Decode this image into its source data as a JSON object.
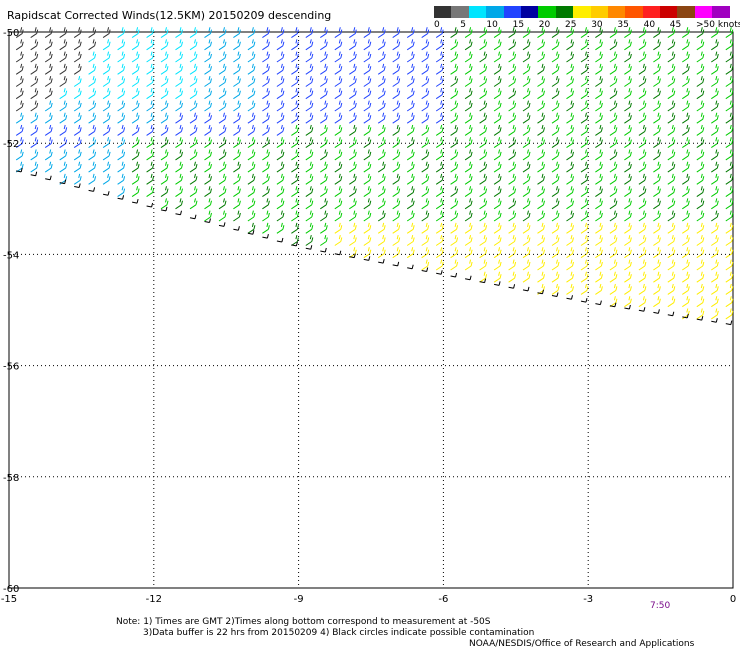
{
  "title": "Rapidscat Corrected Winds(12.5KM) 20150209 descending",
  "legend": {
    "labels": [
      "0",
      "5",
      "10",
      "15",
      "20",
      "25",
      "30",
      "35",
      "40",
      "45",
      ">50 knots"
    ],
    "colors": [
      "#333333",
      "#777777",
      "#00e5ff",
      "#00a8e8",
      "#2244ff",
      "#0000a0",
      "#00cc00",
      "#007a00",
      "#ffee00",
      "#ffcc00",
      "#ff8800",
      "#ff5500",
      "#ff2020",
      "#cc0000",
      "#8b4513",
      "#ff00ff",
      "#a000c0"
    ]
  },
  "chart_data": {
    "type": "scatter",
    "description_kind": "wind barb map",
    "xlim": [
      -15,
      0
    ],
    "ylim": [
      -60,
      -50
    ],
    "x_ticks": [
      "-15",
      "-12",
      "-9",
      "-6",
      "-3",
      "0"
    ],
    "y_ticks": [
      "-50",
      "-52",
      "-54",
      "-56",
      "-58",
      "-60"
    ],
    "time_labels": [
      "7:50"
    ],
    "swath_southern_edge": [
      [
        -15,
        -52.5
      ],
      [
        -9,
        -53.9
      ],
      [
        -6,
        -54.4
      ],
      [
        -3,
        -54.9
      ],
      [
        0,
        -55.3
      ]
    ],
    "wind_regions": [
      {
        "speed_knots": 0,
        "lon": [
          -15,
          -12.5
        ],
        "lat": [
          -51.6,
          -50
        ]
      },
      {
        "speed_knots": 10,
        "lon": [
          -15,
          -10
        ],
        "lat": [
          -52.5,
          -50
        ]
      },
      {
        "speed_knots": 15,
        "lon": [
          -10,
          -6.5
        ],
        "lat": [
          -51.8,
          -50
        ]
      },
      {
        "speed_knots": 20,
        "lon": [
          -12,
          0
        ],
        "lat": [
          -54,
          -50
        ]
      },
      {
        "speed_knots": 25,
        "lon": [
          -8.5,
          0
        ],
        "lat": [
          -55.3,
          -53.4
        ]
      }
    ]
  },
  "notes": {
    "line1": "Note: 1) Times are GMT 2)Times along bottom correspond to measurement at -50S",
    "line2": "3)Data buffer is 22 hrs from 20150209 4) Black circles indicate possible contamination",
    "credit": "NOAA/NESDIS/Office of Research and Applications"
  }
}
